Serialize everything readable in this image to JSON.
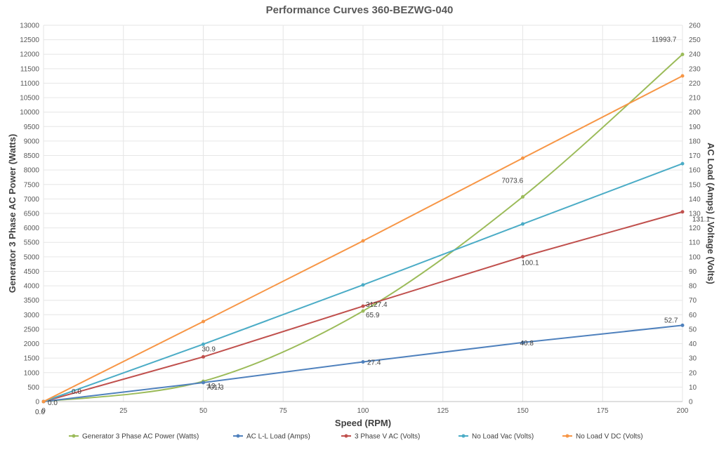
{
  "chart_data": {
    "type": "line",
    "title": "Performance Curves 360-BEZWG-040",
    "xlabel": "Speed (RPM)",
    "ylabel_left": "Generator 3 Phase AC Power (Watts)",
    "ylabel_right": "AC Load (Amps) / Voltage (Volts)",
    "xlim": [
      0,
      200
    ],
    "ylim_left": [
      0,
      13000
    ],
    "ylim_right": [
      0,
      260
    ],
    "x_ticks": [
      0,
      25,
      50,
      75,
      100,
      125,
      150,
      175,
      200
    ],
    "y_left_ticks": [
      0,
      500,
      1000,
      1500,
      2000,
      2500,
      3000,
      3500,
      4000,
      4500,
      5000,
      5500,
      6000,
      6500,
      7000,
      7500,
      8000,
      8500,
      9000,
      9500,
      10000,
      10500,
      11000,
      11500,
      12000,
      12500,
      13000
    ],
    "y_right_ticks": [
      0,
      10,
      20,
      30,
      40,
      50,
      60,
      70,
      80,
      90,
      100,
      110,
      120,
      130,
      140,
      150,
      160,
      170,
      180,
      190,
      200,
      210,
      220,
      230,
      240,
      250,
      260
    ],
    "grid": true,
    "legend_position": "bottom",
    "series": [
      {
        "name": "Generator 3 Phase AC Power (Watts)",
        "axis": "left",
        "color": "#9bbb59",
        "x": [
          0,
          50,
          100,
          150,
          200
        ],
        "y": [
          0.0,
          701.3,
          3127.4,
          7073.6,
          11993.7
        ],
        "labels": [
          "0.0",
          "701.3",
          "3127.4",
          "7073.6",
          "11993.7"
        ]
      },
      {
        "name": "AC L-L Load (Amps)",
        "axis": "right",
        "color": "#4f81bd",
        "x": [
          0,
          50,
          100,
          150,
          200
        ],
        "y": [
          0.0,
          13.1,
          27.4,
          40.8,
          52.7
        ],
        "labels": [
          "0.0",
          "13.1",
          "27.4",
          "40.8",
          "52.7"
        ]
      },
      {
        "name": "3 Phase V AC  (Volts)",
        "axis": "right",
        "color": "#c0504d",
        "x": [
          0,
          50,
          100,
          150,
          200
        ],
        "y": [
          0.0,
          30.9,
          65.9,
          100.1,
          131.1
        ],
        "labels": [
          "0.0",
          "30.9",
          "65.9",
          "100.1",
          "131.1"
        ]
      },
      {
        "name": "No Load Vac (Volts)",
        "axis": "right",
        "color": "#4bacc6",
        "x": [
          0,
          50,
          100,
          150,
          200
        ],
        "y": [
          0.0,
          39.6,
          80.6,
          122.7,
          164.4
        ],
        "labels": []
      },
      {
        "name": "No Load V DC (Volts)",
        "axis": "right",
        "color": "#f79646",
        "x": [
          0,
          50,
          100,
          150,
          200
        ],
        "y": [
          0.0,
          55.3,
          111.0,
          168.2,
          225.0
        ],
        "labels": []
      }
    ]
  }
}
